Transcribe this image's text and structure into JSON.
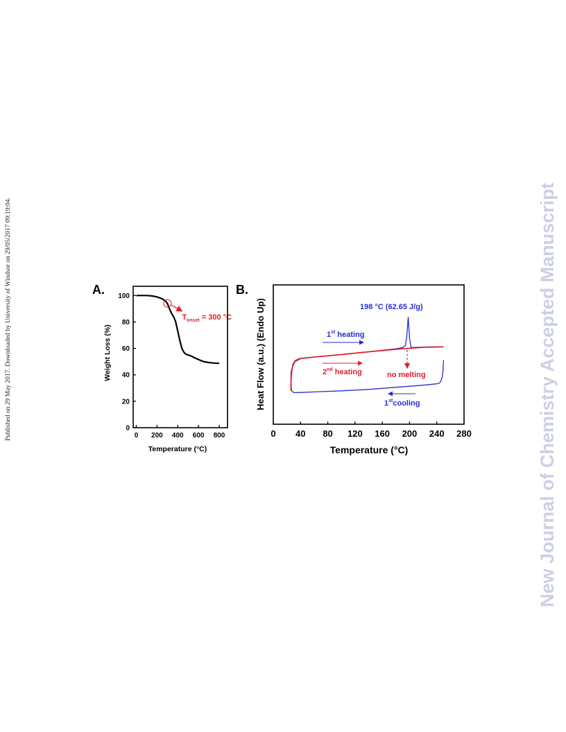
{
  "side_note": "Published on 29 May 2017. Downloaded by University of Windsor on 29/05/2017 09:19:04.",
  "watermark": "New Journal of Chemistry Accepted Manuscript",
  "colors": {
    "black": "#000000",
    "red": "#e0202a",
    "blue": "#2a2ad0"
  },
  "chart_data": [
    {
      "panel_label": "A.",
      "type": "line",
      "xlabel": "Temperature (°C)",
      "ylabel": "Weight Loss (%)",
      "xlim": [
        -30,
        880
      ],
      "ylim": [
        0,
        107
      ],
      "xticks": [
        0,
        200,
        400,
        600,
        800
      ],
      "yticks": [
        0,
        20,
        40,
        60,
        80,
        100
      ],
      "series": [
        {
          "color": "#000000",
          "x": [
            0,
            50,
            100,
            150,
            200,
            250,
            280,
            300,
            320,
            340,
            360,
            380,
            400,
            420,
            440,
            460,
            480,
            500,
            530,
            560,
            600,
            650,
            700,
            750,
            800
          ],
          "y": [
            100,
            100,
            100,
            99.7,
            99,
            97.5,
            96,
            94,
            90,
            86.5,
            84,
            80,
            73,
            66,
            60,
            57,
            55.5,
            55,
            54.2,
            53,
            51.5,
            50,
            49.3,
            48.9,
            48.7
          ]
        }
      ],
      "annotation": {
        "label_main": "T",
        "label_sub": "onset",
        "label_tail": " = 300 °C",
        "x": 300,
        "y": 94,
        "color": "#e0202a"
      }
    },
    {
      "panel_label": "B.",
      "type": "line",
      "xlabel": "Temperature (°C)",
      "ylabel": "Heat Flow (a.u.) (Endo Up)",
      "xlim": [
        0,
        280
      ],
      "ylim": [
        0,
        10
      ],
      "xticks": [
        0,
        40,
        80,
        120,
        160,
        200,
        240,
        280
      ],
      "series": [
        {
          "name": "1st heating",
          "color": "#2a2ad0",
          "x": [
            26,
            28,
            32,
            40,
            60,
            100,
            140,
            180,
            190,
            194,
            196,
            198,
            200,
            202,
            204,
            210,
            230,
            250
          ],
          "y": [
            3.75,
            4.1,
            4.5,
            4.7,
            4.82,
            5.0,
            5.2,
            5.42,
            5.5,
            5.65,
            6.3,
            7.7,
            6.2,
            5.55,
            5.5,
            5.52,
            5.55,
            5.55
          ]
        },
        {
          "name": "1st cooling",
          "color": "#2a2ad0",
          "x": [
            250,
            249,
            248,
            246,
            244,
            240,
            220,
            180,
            140,
            100,
            60,
            40,
            30,
            27,
            26,
            26
          ],
          "y": [
            4.6,
            3.8,
            3.4,
            3.1,
            2.95,
            2.9,
            2.8,
            2.65,
            2.5,
            2.4,
            2.32,
            2.28,
            2.27,
            2.4,
            2.8,
            3.75
          ]
        },
        {
          "name": "2nd heating",
          "color": "#e0202a",
          "x": [
            26,
            26,
            27,
            29,
            32,
            36,
            40,
            60,
            100,
            140,
            180,
            200,
            220,
            250
          ],
          "y": [
            2.4,
            3.0,
            3.8,
            4.3,
            4.55,
            4.66,
            4.72,
            4.82,
            5.0,
            5.2,
            5.38,
            5.45,
            5.52,
            5.55
          ]
        }
      ],
      "annotations": {
        "peak_label": "198 °C (62.65 J/g)",
        "first_heating": {
          "num": "1",
          "sup": "st",
          "text": " heating"
        },
        "second_heating": {
          "num": "2",
          "sup": "nd",
          "text": " heating"
        },
        "first_cooling": {
          "num": "1",
          "sup": "st",
          "text": "cooling"
        },
        "no_melting": "no melting"
      }
    }
  ]
}
